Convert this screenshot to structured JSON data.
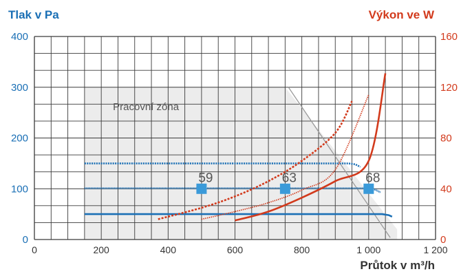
{
  "chart_data": {
    "type": "line",
    "title": "",
    "y_left_label": "Tlak v Pa",
    "y_right_label": "Výkon ve W",
    "xlabel": "Průtok v m³/h",
    "xlim": [
      0,
      1200
    ],
    "ylim_left": [
      0,
      400
    ],
    "ylim_right": [
      0,
      160
    ],
    "x_ticks": [
      "0",
      "200",
      "400",
      "600",
      "800",
      "1 000",
      "1 200"
    ],
    "x_tick_values": [
      0,
      200,
      400,
      600,
      800,
      1000,
      1200
    ],
    "y_left_ticks": [
      "0",
      "100",
      "200",
      "300",
      "400"
    ],
    "y_left_tick_values": [
      0,
      100,
      200,
      300,
      400
    ],
    "y_right_ticks": [
      "0",
      "40",
      "80",
      "120",
      "160"
    ],
    "y_right_tick_values": [
      0,
      40,
      80,
      120,
      160
    ],
    "grid": true,
    "working_zone": {
      "label": "Pracovní zóna",
      "polygon": [
        [
          150,
          0
        ],
        [
          150,
          300
        ],
        [
          750,
          300
        ],
        [
          1085,
          20
        ],
        [
          1085,
          0
        ]
      ]
    },
    "boundary_line": [
      [
        760,
        300
      ],
      [
        1085,
        20
      ]
    ],
    "pressure_series": [
      {
        "style": "dotted",
        "axis": "left",
        "points": [
          [
            150,
            150
          ],
          [
            940,
            150
          ],
          [
            960,
            148
          ],
          [
            975,
            143
          ]
        ]
      },
      {
        "style": "dense",
        "axis": "left",
        "points": [
          [
            150,
            101
          ],
          [
            1000,
            101
          ],
          [
            1020,
            98
          ],
          [
            1035,
            93
          ]
        ]
      },
      {
        "style": "solid",
        "axis": "left",
        "points": [
          [
            150,
            50
          ],
          [
            1040,
            50
          ],
          [
            1060,
            48
          ],
          [
            1070,
            45
          ]
        ]
      }
    ],
    "power_series": [
      {
        "style": "dashed",
        "axis": "right",
        "points": [
          [
            370,
            16
          ],
          [
            500,
            25
          ],
          [
            600,
            34
          ],
          [
            700,
            46
          ],
          [
            800,
            62
          ],
          [
            900,
            84
          ],
          [
            950,
            109
          ]
        ]
      },
      {
        "style": "dotted",
        "axis": "right",
        "points": [
          [
            500,
            16
          ],
          [
            600,
            22
          ],
          [
            700,
            29
          ],
          [
            800,
            39
          ],
          [
            900,
            55
          ],
          [
            1000,
            114
          ]
        ]
      },
      {
        "style": "solid",
        "axis": "right",
        "points": [
          [
            600,
            15
          ],
          [
            700,
            22
          ],
          [
            800,
            33
          ],
          [
            900,
            46
          ],
          [
            1000,
            62
          ],
          [
            1050,
            131
          ]
        ]
      }
    ],
    "markers": [
      {
        "x": 500,
        "y": 100,
        "label": "59"
      },
      {
        "x": 750,
        "y": 100,
        "label": "63"
      },
      {
        "x": 1000,
        "y": 100,
        "label": "68"
      }
    ],
    "colors": {
      "pressure": "#1a6fb5",
      "power": "#d23a1c",
      "marker": "#3a9ad9",
      "zone": "#ececec",
      "grid": "#3a3a3a"
    }
  }
}
